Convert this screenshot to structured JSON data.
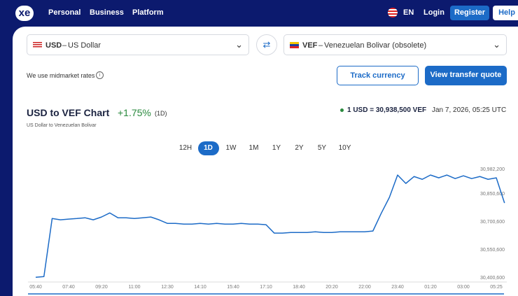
{
  "nav": {
    "logo": "xe",
    "items": [
      "Personal",
      "Business",
      "Platform"
    ],
    "language": "EN",
    "login": "Login",
    "register": "Register",
    "help": "Help"
  },
  "converter": {
    "from": "USD",
    "from_name": "US Dollar",
    "to": "VEF",
    "to_name": "Venezuelan Bolivar (obsolete)",
    "dash": "–",
    "note": "We use midmarket rates",
    "track": "Track currency",
    "quote": "View transfer quote"
  },
  "summary": {
    "change": "+1.75%",
    "period": "(1D)",
    "rate": "1 USD = 30,938,500 VEF",
    "date": "Jan 7, 2026, 05:25 UTC"
  },
  "ranges": {
    "items": [
      "12H",
      "1D",
      "1W",
      "1M",
      "1Y",
      "2Y",
      "5Y",
      "10Y"
    ],
    "active": "1D"
  },
  "chart_data": {
    "type": "line",
    "title": "USD to VEF Chart",
    "subtitle": "US Dollar to Venezuelan Bolivar",
    "color": "#1c6bc7",
    "grid": false,
    "categories": [
      "05:40",
      null,
      null,
      null,
      "07:40",
      null,
      null,
      null,
      "09:20",
      null,
      null,
      null,
      "11:00",
      null,
      null,
      null,
      "12:30",
      null,
      null,
      null,
      "14:10",
      null,
      null,
      null,
      "15:40",
      null,
      null,
      null,
      "17:10",
      null,
      null,
      null,
      "18:40",
      null,
      null,
      null,
      "20:20",
      null,
      null,
      null,
      "22:00",
      null,
      null,
      null,
      "23:40",
      null,
      null,
      null,
      "01:20",
      null,
      null,
      null,
      "03:00",
      null,
      null,
      null,
      "05:25",
      null
    ],
    "values": [
      30404000,
      30408000,
      30719000,
      30712000,
      30716000,
      30719000,
      30723000,
      30712000,
      30727000,
      30749000,
      30723000,
      30723000,
      30719000,
      30723000,
      30727000,
      30712000,
      30693000,
      30693000,
      30689000,
      30689000,
      30693000,
      30689000,
      30693000,
      30689000,
      30689000,
      30693000,
      30689000,
      30689000,
      30686000,
      30641000,
      30641000,
      30644000,
      30644000,
      30644000,
      30648000,
      30644000,
      30644000,
      30648000,
      30648000,
      30648000,
      30648000,
      30652000,
      30746000,
      30832000,
      30952000,
      30907000,
      30944000,
      30929000,
      30952000,
      30937000,
      30952000,
      30933000,
      30948000,
      30933000,
      30944000,
      30929000,
      30937000,
      30802000
    ],
    "ylim": [
      30390000,
      30990000
    ],
    "yticks": [
      {
        "value": 30400600,
        "label": "30,400,600"
      },
      {
        "value": 30550600,
        "label": "30,550,600"
      },
      {
        "value": 30700600,
        "label": "30,700,600"
      },
      {
        "value": 30850600,
        "label": "30,850,600"
      },
      {
        "value": 30982200,
        "label": "30,982,200"
      }
    ]
  }
}
